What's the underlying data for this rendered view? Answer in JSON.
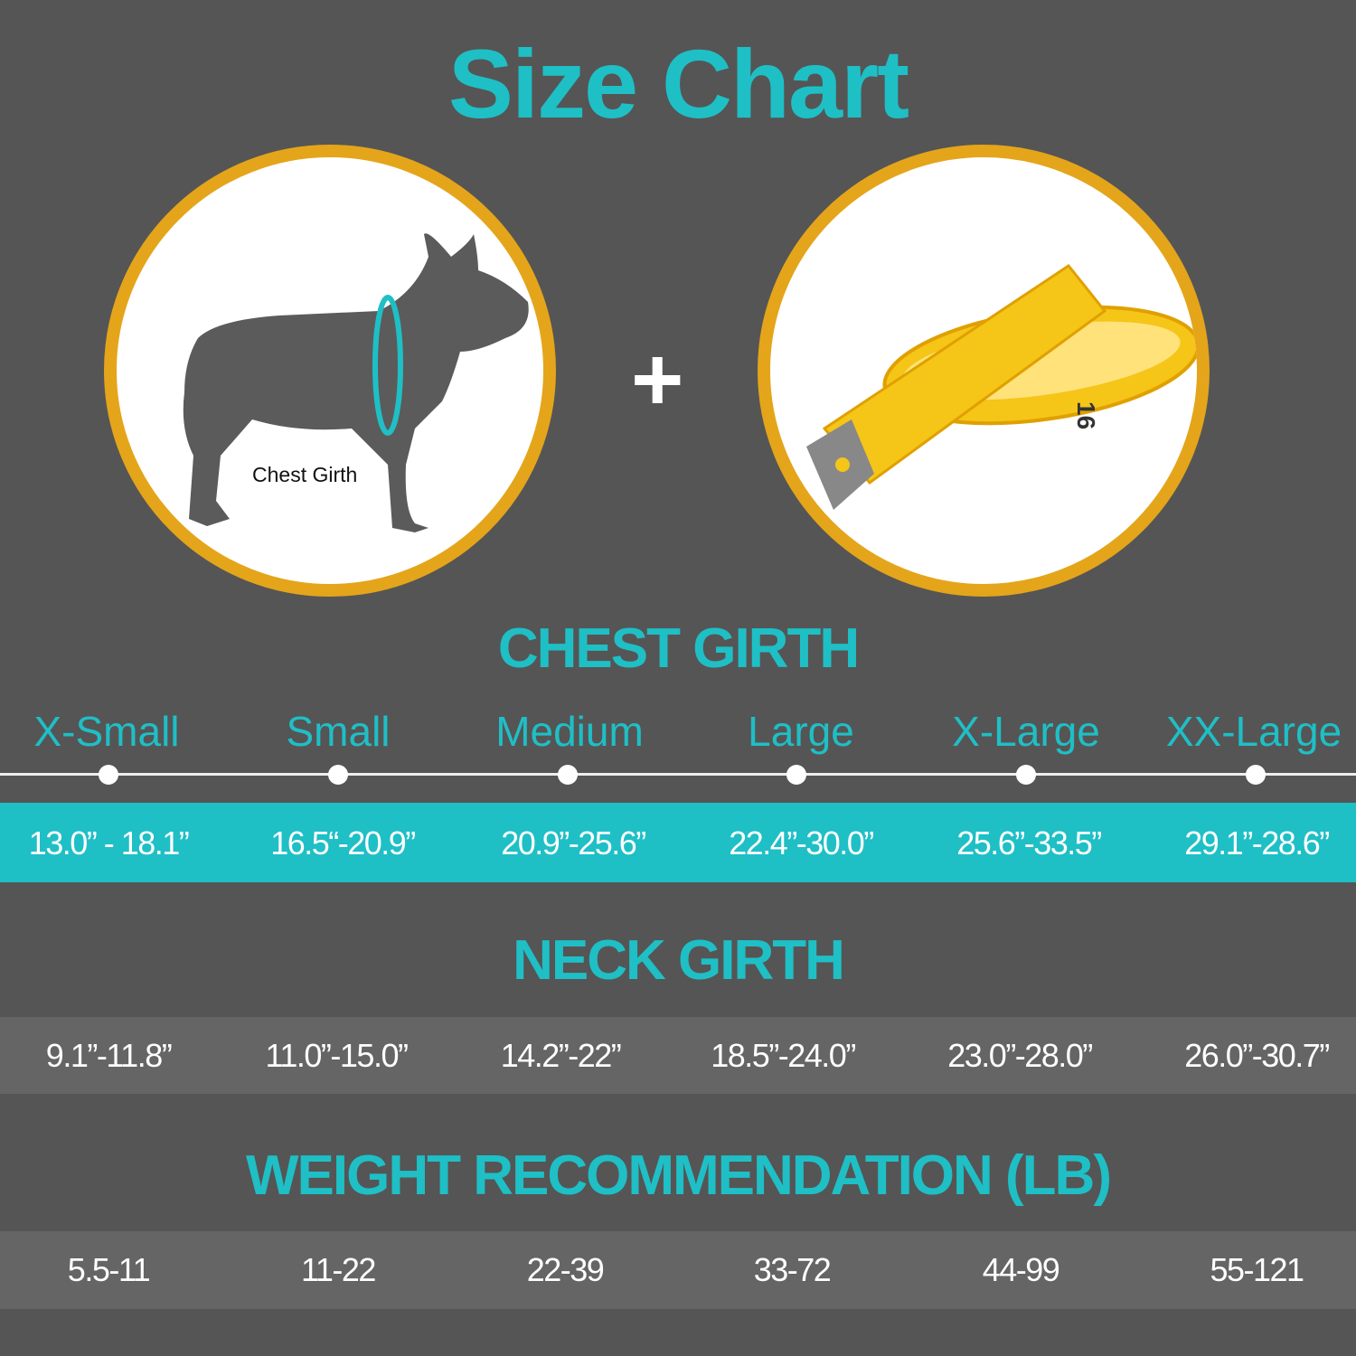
{
  "title": "Size Chart",
  "illustration": {
    "dog_label": "Chest Girth",
    "tape_number": "16",
    "plus": "+"
  },
  "colors": {
    "background": "#555555",
    "accent": "#1fbfc6",
    "ring": "#e4a51b"
  },
  "sizes": [
    "X-Small",
    "Small",
    "Medium",
    "Large",
    "X-Large",
    "XX-Large"
  ],
  "chest": {
    "title": "CHEST GIRTH",
    "values": [
      "13.0” - 18.1”",
      "16.5“-20.9”",
      "20.9”-25.6”",
      "22.4”-30.0”",
      "25.6”-33.5”",
      "29.1”-28.6”"
    ]
  },
  "neck": {
    "title": "NECK GIRTH",
    "values": [
      "9.1”-11.8”",
      "11.0”-15.0”",
      "14.2”-22”",
      "18.5”-24.0”",
      "23.0”-28.0”",
      "26.0”-30.7”"
    ]
  },
  "weight": {
    "title": "WEIGHT RECOMMENDATION (LB)",
    "values": [
      "5.5-11",
      "11-22",
      "22-39",
      "33-72",
      "44-99",
      "55-121"
    ]
  }
}
